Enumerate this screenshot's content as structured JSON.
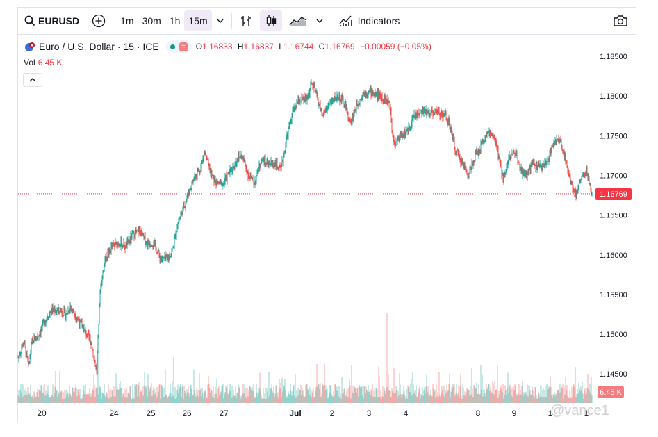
{
  "toolbar": {
    "symbol": "EURUSD",
    "intervals": [
      "1m",
      "30m",
      "1h",
      "15m"
    ],
    "active_interval": "15m",
    "indicators_label": "Indicators"
  },
  "legend": {
    "title": "Euro / U.S. Dollar · 15 · ICE",
    "open_key": "O",
    "open": "1.16833",
    "high_key": "H",
    "high": "1.16837",
    "low_key": "L",
    "low": "1.16744",
    "close_key": "C",
    "close": "1.16769",
    "change": "−0.00059 (−0.05%)"
  },
  "volume": {
    "label": "Vol",
    "value": "6.45 K"
  },
  "price_axis": {
    "ticks": [
      "1.18500",
      "1.18000",
      "1.17500",
      "1.17000",
      "1.16500",
      "1.16000",
      "1.15500",
      "1.15000",
      "1.14500"
    ],
    "last_price": "1.16769",
    "last_volume": "6.45 K"
  },
  "time_axis": {
    "ticks": [
      "20",
      "24",
      "25",
      "26",
      "27",
      "Jul",
      "2",
      "3",
      "4",
      "8",
      "9",
      "1",
      "1"
    ]
  },
  "colors": {
    "up": "#26a69a",
    "down": "#ef5350",
    "last": "#f23645"
  },
  "watermark": "@vance1",
  "chart_data": {
    "type": "candlestick",
    "title": "Euro / U.S. Dollar · 15 · ICE",
    "ylim": [
      1.1435,
      1.1872
    ],
    "x_range": [
      "Jun 19",
      "Jul 10"
    ],
    "path_points": [
      [
        0,
        1.147
      ],
      [
        8,
        1.149
      ],
      [
        15,
        1.146
      ],
      [
        20,
        1.149
      ],
      [
        30,
        1.15
      ],
      [
        40,
        1.152
      ],
      [
        48,
        1.153
      ],
      [
        60,
        1.153
      ],
      [
        70,
        1.1525
      ],
      [
        75,
        1.1535
      ],
      [
        85,
        1.152
      ],
      [
        95,
        1.1505
      ],
      [
        105,
        1.149
      ],
      [
        110,
        1.1465
      ],
      [
        113,
        1.1455
      ],
      [
        118,
        1.1555
      ],
      [
        125,
        1.1595
      ],
      [
        135,
        1.161
      ],
      [
        145,
        1.1615
      ],
      [
        155,
        1.161
      ],
      [
        165,
        1.1625
      ],
      [
        175,
        1.163
      ],
      [
        185,
        1.1615
      ],
      [
        195,
        1.1615
      ],
      [
        205,
        1.1595
      ],
      [
        215,
        1.1595
      ],
      [
        222,
        1.1605
      ],
      [
        230,
        1.164
      ],
      [
        240,
        1.1665
      ],
      [
        248,
        1.1685
      ],
      [
        255,
        1.17
      ],
      [
        263,
        1.171
      ],
      [
        268,
        1.173
      ],
      [
        278,
        1.17
      ],
      [
        285,
        1.169
      ],
      [
        295,
        1.169
      ],
      [
        305,
        1.1705
      ],
      [
        315,
        1.172
      ],
      [
        322,
        1.1725
      ],
      [
        332,
        1.17
      ],
      [
        340,
        1.169
      ],
      [
        350,
        1.172
      ],
      [
        360,
        1.1715
      ],
      [
        370,
        1.1715
      ],
      [
        378,
        1.1705
      ],
      [
        386,
        1.1745
      ],
      [
        395,
        1.178
      ],
      [
        405,
        1.1795
      ],
      [
        415,
        1.1795
      ],
      [
        422,
        1.1815
      ],
      [
        428,
        1.1805
      ],
      [
        438,
        1.1775
      ],
      [
        448,
        1.179
      ],
      [
        460,
        1.18
      ],
      [
        470,
        1.179
      ],
      [
        478,
        1.1765
      ],
      [
        488,
        1.179
      ],
      [
        498,
        1.1805
      ],
      [
        508,
        1.1805
      ],
      [
        520,
        1.18
      ],
      [
        530,
        1.1795
      ],
      [
        535,
        1.179
      ],
      [
        538,
        1.176
      ],
      [
        542,
        1.174
      ],
      [
        550,
        1.175
      ],
      [
        560,
        1.1755
      ],
      [
        570,
        1.1775
      ],
      [
        580,
        1.178
      ],
      [
        595,
        1.178
      ],
      [
        605,
        1.178
      ],
      [
        615,
        1.1775
      ],
      [
        622,
        1.176
      ],
      [
        630,
        1.173
      ],
      [
        640,
        1.1715
      ],
      [
        648,
        1.17
      ],
      [
        655,
        1.172
      ],
      [
        662,
        1.173
      ],
      [
        670,
        1.1745
      ],
      [
        678,
        1.1755
      ],
      [
        688,
        1.174
      ],
      [
        692,
        1.172
      ],
      [
        698,
        1.1695
      ],
      [
        705,
        1.172
      ],
      [
        715,
        1.173
      ],
      [
        720,
        1.172
      ],
      [
        725,
        1.1705
      ],
      [
        733,
        1.17
      ],
      [
        740,
        1.1715
      ],
      [
        750,
        1.171
      ],
      [
        760,
        1.1715
      ],
      [
        768,
        1.1735
      ],
      [
        775,
        1.1745
      ],
      [
        782,
        1.174
      ],
      [
        788,
        1.172
      ],
      [
        793,
        1.17
      ],
      [
        798,
        1.1685
      ],
      [
        803,
        1.1675
      ],
      [
        807,
        1.169
      ],
      [
        812,
        1.17
      ],
      [
        818,
        1.1705
      ],
      [
        822,
        1.169
      ],
      [
        826,
        1.1677
      ]
    ],
    "last_price": 1.16769,
    "volume_last": "6.45 K"
  }
}
